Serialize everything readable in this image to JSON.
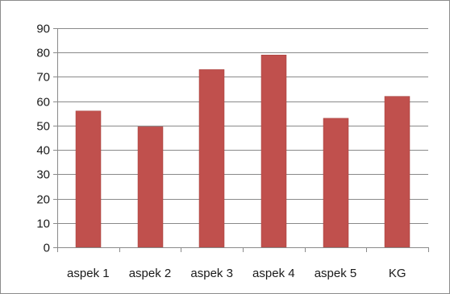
{
  "chart_data": {
    "type": "bar",
    "title": "",
    "xlabel": "",
    "ylabel": "",
    "categories": [
      "aspek 1",
      "aspek 2",
      "aspek 3",
      "aspek 4",
      "aspek 5",
      "KG"
    ],
    "series": [
      {
        "values": [
          56,
          49.5,
          73,
          79,
          53,
          62
        ]
      }
    ],
    "ylim": [
      0,
      90
    ],
    "yticks": [
      0,
      10,
      20,
      30,
      40,
      50,
      60,
      70,
      80,
      90
    ],
    "grid": true,
    "legend": "none",
    "colors": {
      "bar": "#c0504d",
      "bar_edge": "#a33f3c",
      "grid": "#8a8a8a",
      "axis": "#8a8a8a",
      "text": "#1a1a1a"
    }
  }
}
